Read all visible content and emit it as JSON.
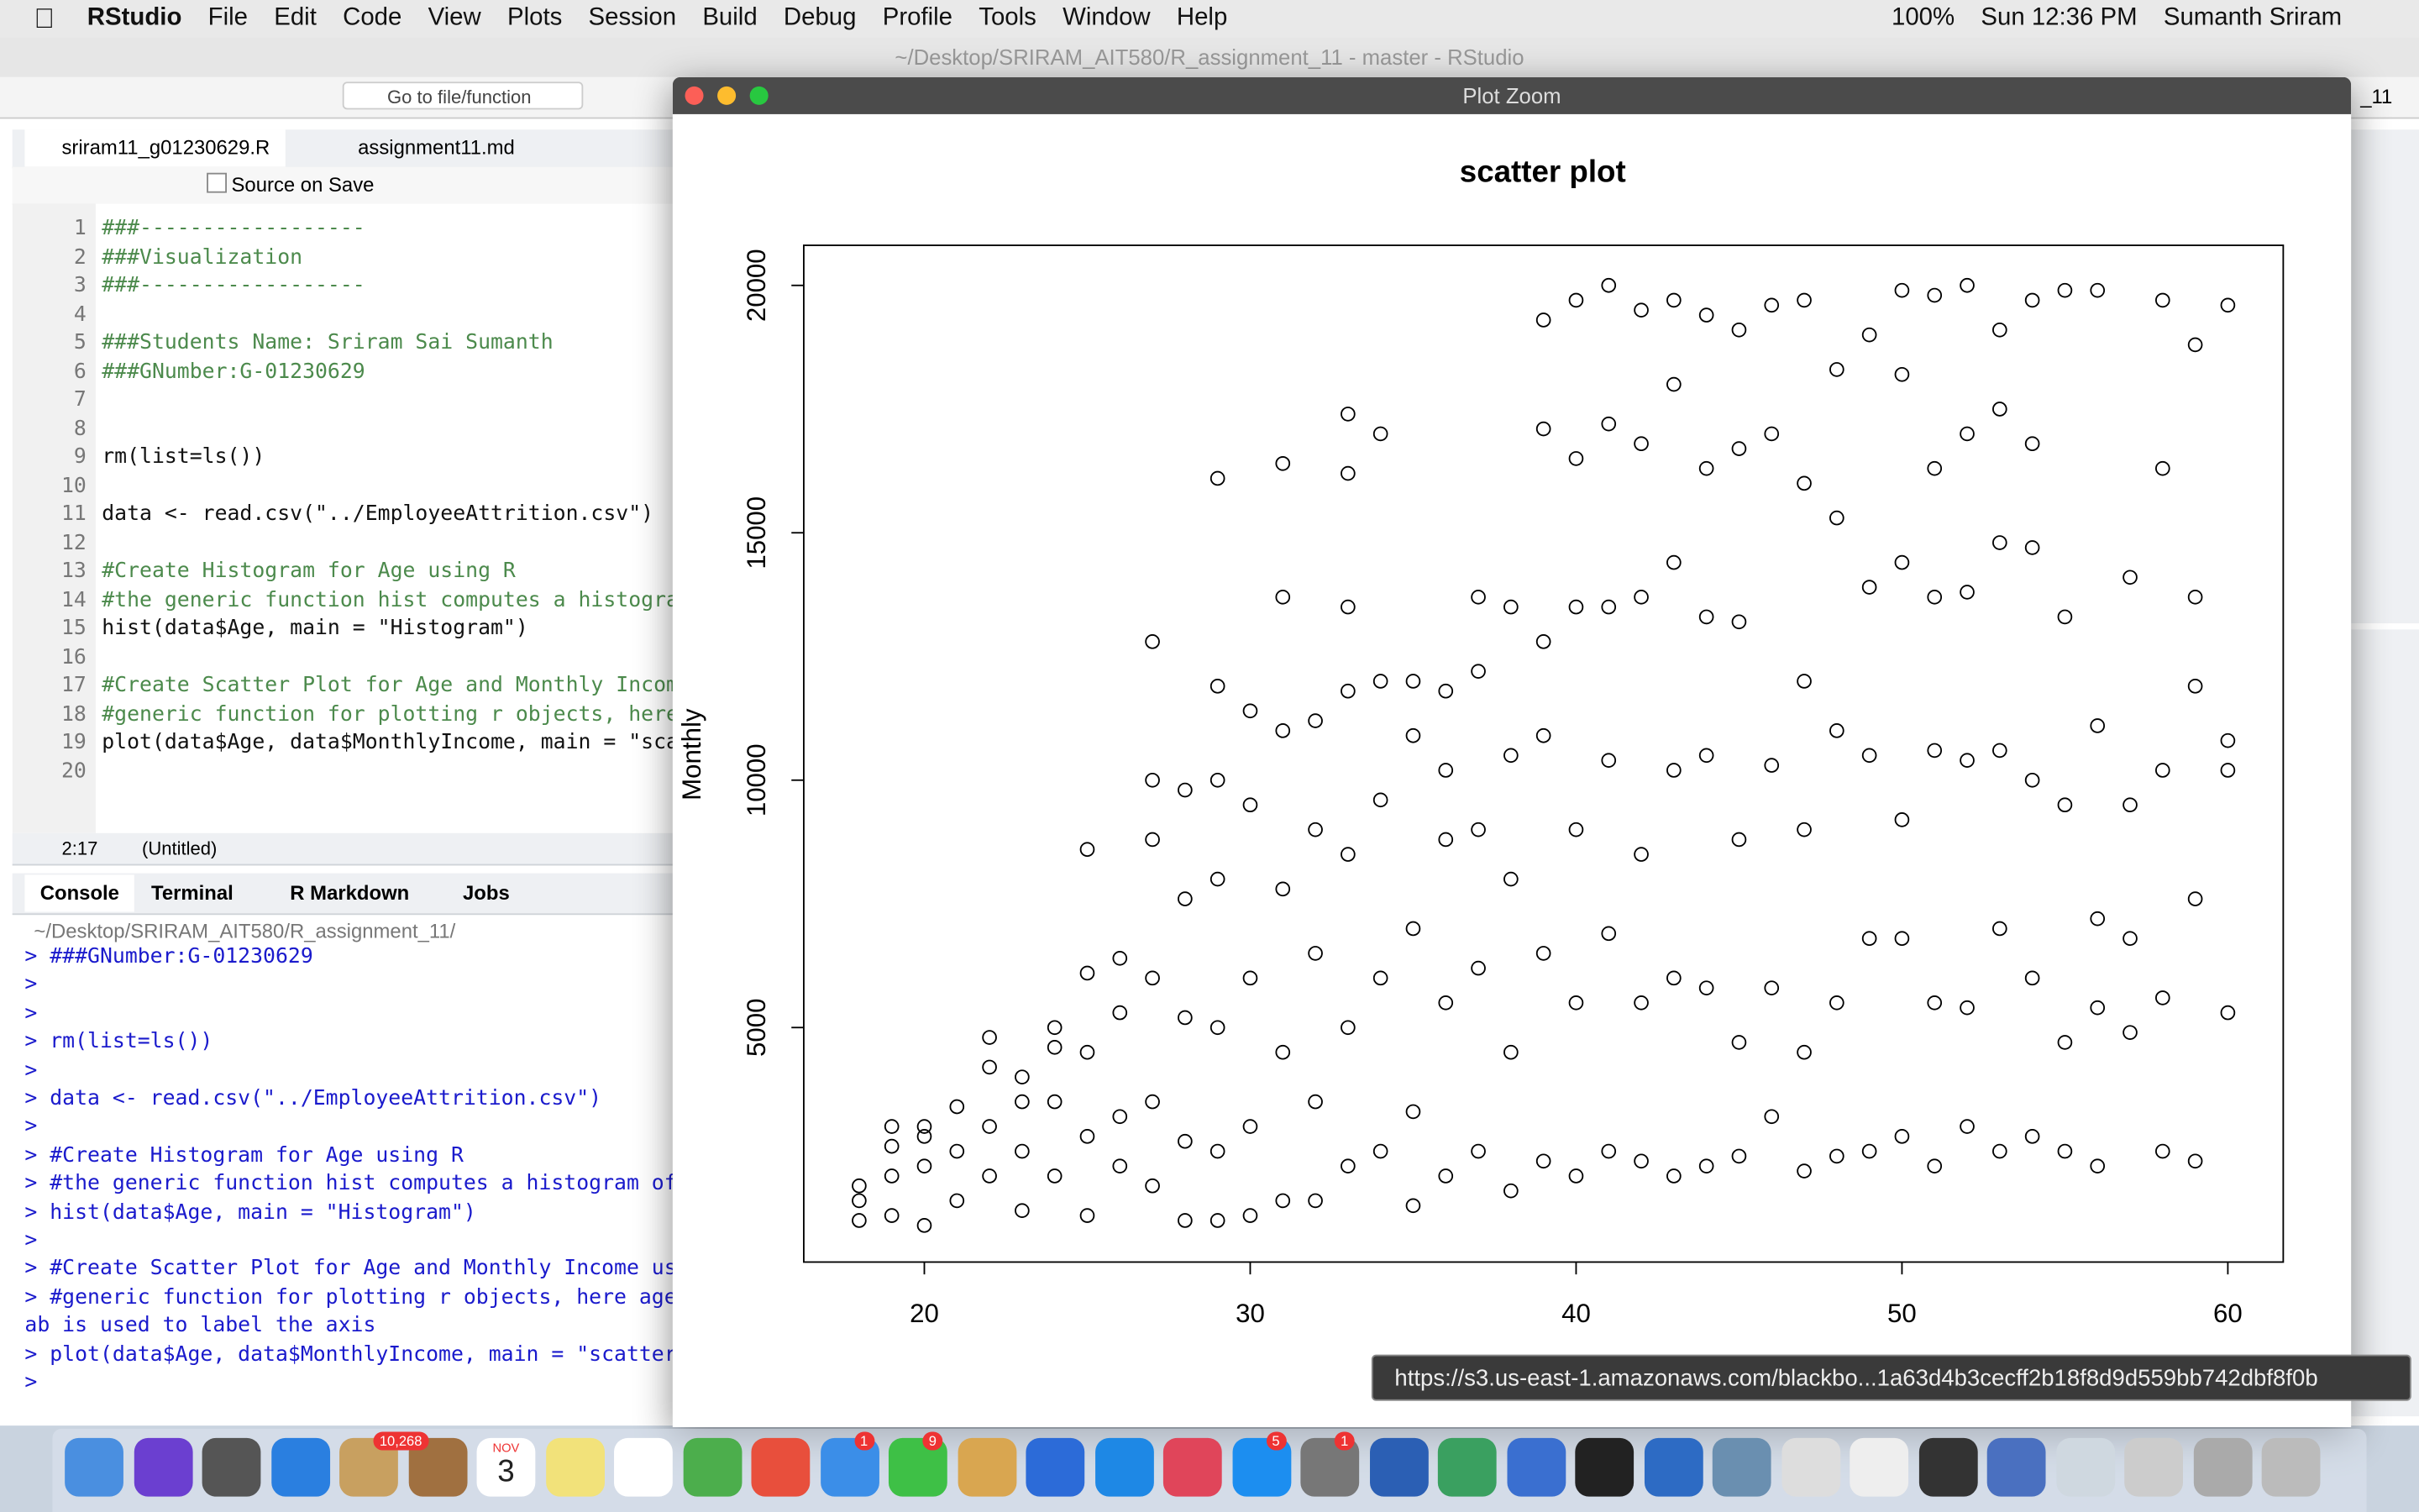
{
  "menubar": {
    "app": "RStudio",
    "menus": [
      "File",
      "Edit",
      "Code",
      "View",
      "Plots",
      "Session",
      "Build",
      "Debug",
      "Profile",
      "Tools",
      "Window",
      "Help"
    ],
    "battery": "100%",
    "clock": "Sun 12:36 PM",
    "user": "Sumanth Sriram"
  },
  "window_title": "~/Desktop/SRIRAM_AIT580/R_assignment_11 - master - RStudio",
  "toolbar": {
    "goto": "Go to file/function",
    "project": "_11"
  },
  "editor": {
    "tabs": [
      "sriram11_g01230629.R",
      "assignment11.md"
    ],
    "source_on_save": "Source on Save",
    "lines": [
      {
        "n": 1,
        "text": "###------------------",
        "kind": "comment"
      },
      {
        "n": 2,
        "text": "###Visualization",
        "kind": "comment"
      },
      {
        "n": 3,
        "text": "###------------------",
        "kind": "comment"
      },
      {
        "n": 4
      },
      {
        "n": 5,
        "text": "###Students Name: Sriram Sai Sumanth",
        "kind": "comment"
      },
      {
        "n": 6,
        "text": "###GNumber:G-01230629",
        "kind": "comment"
      },
      {
        "n": 7
      },
      {
        "n": 8
      },
      {
        "n": 9,
        "text": "rm(list=ls())",
        "kind": "code"
      },
      {
        "n": 10
      },
      {
        "n": 11,
        "text": "data <- read.csv(\"../EmployeeAttrition.csv\")",
        "kind": "code"
      },
      {
        "n": 12
      },
      {
        "n": 13,
        "text": "#Create Histogram for Age using R",
        "kind": "comment"
      },
      {
        "n": 14,
        "text": "#the generic function hist computes a histogram",
        "kind": "comment"
      },
      {
        "n": 15,
        "text": "hist(data$Age, main = \"Histogram\")",
        "kind": "code"
      },
      {
        "n": 16
      },
      {
        "n": 17,
        "text": "#Create Scatter Plot for Age and Monthly Income",
        "kind": "comment"
      },
      {
        "n": 18,
        "text": "#generic function for plotting r objects, here",
        "kind": "comment"
      },
      {
        "n": 19,
        "text": "plot(data$Age, data$MonthlyIncome, main = \"scat",
        "kind": "code"
      },
      {
        "n": 20
      }
    ],
    "status_pos": "2:17",
    "status_scope": "(Untitled)"
  },
  "console": {
    "tabs": [
      "Console",
      "Terminal",
      "R Markdown",
      "Jobs"
    ],
    "path": "~/Desktop/SRIRAM_AIT580/R_assignment_11/",
    "lines": [
      "> ###GNumber:G-01230629",
      ">",
      ">",
      "> rm(list=ls())",
      ">",
      "> data <- read.csv(\"../EmployeeAttrition.csv\")",
      ">",
      "> #Create Histogram for Age using R",
      "> #the generic function hist computes a histogram of t",
      "> hist(data$Age, main = \"Histogram\")",
      ">",
      "> #Create Scatter Plot for Age and Monthly Income usin",
      "> #generic function for plotting r objects, here age t",
      "ab is used to label the axis",
      "> plot(data$Age, data$MonthlyIncome, main = \"scatter p",
      ">"
    ]
  },
  "plot_window": {
    "title": "Plot Zoom",
    "plot": {
      "type": "scatter",
      "title": "scatter plot",
      "ylabel": "Monthly",
      "xlim": [
        16.3,
        61.7
      ],
      "ylim": [
        260,
        20810
      ],
      "xticks": [
        20,
        30,
        40,
        50,
        60
      ],
      "yticks": [
        5000,
        10000,
        15000,
        20000
      ],
      "points": [
        [
          18,
          1100
        ],
        [
          18,
          1500
        ],
        [
          18,
          1800
        ],
        [
          19,
          1200
        ],
        [
          19,
          2000
        ],
        [
          19,
          2600
        ],
        [
          19,
          3000
        ],
        [
          20,
          1000
        ],
        [
          20,
          2200
        ],
        [
          20,
          2800
        ],
        [
          20,
          3000
        ],
        [
          21,
          1500
        ],
        [
          21,
          2500
        ],
        [
          21,
          3400
        ],
        [
          22,
          2000
        ],
        [
          22,
          3000
        ],
        [
          22,
          4200
        ],
        [
          22,
          4800
        ],
        [
          23,
          1300
        ],
        [
          23,
          2500
        ],
        [
          23,
          3500
        ],
        [
          23,
          4000
        ],
        [
          24,
          2000
        ],
        [
          24,
          3500
        ],
        [
          24,
          4600
        ],
        [
          24,
          5000
        ],
        [
          25,
          1200
        ],
        [
          25,
          2800
        ],
        [
          25,
          4500
        ],
        [
          25,
          6100
        ],
        [
          25,
          8600
        ],
        [
          26,
          2200
        ],
        [
          26,
          3200
        ],
        [
          26,
          5300
        ],
        [
          26,
          6400
        ],
        [
          27,
          1800
        ],
        [
          27,
          3500
        ],
        [
          27,
          6000
        ],
        [
          27,
          8800
        ],
        [
          27,
          10000
        ],
        [
          27,
          12800
        ],
        [
          28,
          1100
        ],
        [
          28,
          2700
        ],
        [
          28,
          5200
        ],
        [
          28,
          7600
        ],
        [
          28,
          9800
        ],
        [
          29,
          1100
        ],
        [
          29,
          2500
        ],
        [
          29,
          5000
        ],
        [
          29,
          8000
        ],
        [
          29,
          10000
        ],
        [
          29,
          11900
        ],
        [
          29,
          16100
        ],
        [
          30,
          1200
        ],
        [
          30,
          3000
        ],
        [
          30,
          6000
        ],
        [
          30,
          9500
        ],
        [
          30,
          11400
        ],
        [
          31,
          1500
        ],
        [
          31,
          4500
        ],
        [
          31,
          7800
        ],
        [
          31,
          11000
        ],
        [
          31,
          13700
        ],
        [
          31,
          16400
        ],
        [
          32,
          1500
        ],
        [
          32,
          3500
        ],
        [
          32,
          6500
        ],
        [
          32,
          9000
        ],
        [
          32,
          11200
        ],
        [
          33,
          2200
        ],
        [
          33,
          5000
        ],
        [
          33,
          8500
        ],
        [
          33,
          11800
        ],
        [
          33,
          13500
        ],
        [
          33,
          16200
        ],
        [
          33,
          17400
        ],
        [
          34,
          2500
        ],
        [
          34,
          6000
        ],
        [
          34,
          9600
        ],
        [
          34,
          12000
        ],
        [
          34,
          17000
        ],
        [
          35,
          1400
        ],
        [
          35,
          3300
        ],
        [
          35,
          7000
        ],
        [
          35,
          10900
        ],
        [
          35,
          12000
        ],
        [
          36,
          2000
        ],
        [
          36,
          5500
        ],
        [
          36,
          8800
        ],
        [
          36,
          10200
        ],
        [
          36,
          11800
        ],
        [
          37,
          2500
        ],
        [
          37,
          6200
        ],
        [
          37,
          9000
        ],
        [
          37,
          12200
        ],
        [
          37,
          13700
        ],
        [
          38,
          1700
        ],
        [
          38,
          4500
        ],
        [
          38,
          8000
        ],
        [
          38,
          10500
        ],
        [
          38,
          13500
        ],
        [
          39,
          2300
        ],
        [
          39,
          6500
        ],
        [
          39,
          10900
        ],
        [
          39,
          12800
        ],
        [
          39,
          17100
        ],
        [
          39,
          19300
        ],
        [
          40,
          2000
        ],
        [
          40,
          5500
        ],
        [
          40,
          9000
        ],
        [
          40,
          13500
        ],
        [
          40,
          16500
        ],
        [
          40,
          19700
        ],
        [
          41,
          2500
        ],
        [
          41,
          6900
        ],
        [
          41,
          10400
        ],
        [
          41,
          13500
        ],
        [
          41,
          17200
        ],
        [
          41,
          20000
        ],
        [
          42,
          2300
        ],
        [
          42,
          5500
        ],
        [
          42,
          8500
        ],
        [
          42,
          13700
        ],
        [
          42,
          16800
        ],
        [
          42,
          19500
        ],
        [
          43,
          2000
        ],
        [
          43,
          6000
        ],
        [
          43,
          10200
        ],
        [
          43,
          14400
        ],
        [
          43,
          18000
        ],
        [
          43,
          19700
        ],
        [
          44,
          2200
        ],
        [
          44,
          5800
        ],
        [
          44,
          10500
        ],
        [
          44,
          13300
        ],
        [
          44,
          16300
        ],
        [
          44,
          19400
        ],
        [
          45,
          2400
        ],
        [
          45,
          4700
        ],
        [
          45,
          8800
        ],
        [
          45,
          13200
        ],
        [
          45,
          16700
        ],
        [
          45,
          19100
        ],
        [
          46,
          3200
        ],
        [
          46,
          5800
        ],
        [
          46,
          10300
        ],
        [
          46,
          17000
        ],
        [
          46,
          19600
        ],
        [
          47,
          2100
        ],
        [
          47,
          4500
        ],
        [
          47,
          9000
        ],
        [
          47,
          12000
        ],
        [
          47,
          16000
        ],
        [
          47,
          19700
        ],
        [
          48,
          2400
        ],
        [
          48,
          5500
        ],
        [
          48,
          11000
        ],
        [
          48,
          15300
        ],
        [
          48,
          18300
        ],
        [
          49,
          2500
        ],
        [
          49,
          6800
        ],
        [
          49,
          10500
        ],
        [
          49,
          13900
        ],
        [
          49,
          19000
        ],
        [
          50,
          2800
        ],
        [
          50,
          6800
        ],
        [
          50,
          9200
        ],
        [
          50,
          14400
        ],
        [
          50,
          18200
        ],
        [
          50,
          19900
        ],
        [
          51,
          2200
        ],
        [
          51,
          5500
        ],
        [
          51,
          10600
        ],
        [
          51,
          13700
        ],
        [
          51,
          16300
        ],
        [
          51,
          19800
        ],
        [
          52,
          3000
        ],
        [
          52,
          5400
        ],
        [
          52,
          10400
        ],
        [
          52,
          13800
        ],
        [
          52,
          17000
        ],
        [
          52,
          20000
        ],
        [
          53,
          2500
        ],
        [
          53,
          7000
        ],
        [
          53,
          10600
        ],
        [
          53,
          14800
        ],
        [
          53,
          17500
        ],
        [
          53,
          19100
        ],
        [
          54,
          2800
        ],
        [
          54,
          6000
        ],
        [
          54,
          10000
        ],
        [
          54,
          14700
        ],
        [
          54,
          16800
        ],
        [
          54,
          19700
        ],
        [
          55,
          2500
        ],
        [
          55,
          4700
        ],
        [
          55,
          9500
        ],
        [
          55,
          13300
        ],
        [
          55,
          19900
        ],
        [
          56,
          2200
        ],
        [
          56,
          5400
        ],
        [
          56,
          7200
        ],
        [
          56,
          11100
        ],
        [
          56,
          19900
        ],
        [
          57,
          4900
        ],
        [
          57,
          6800
        ],
        [
          57,
          9500
        ],
        [
          57,
          14100
        ],
        [
          58,
          2500
        ],
        [
          58,
          5600
        ],
        [
          58,
          10200
        ],
        [
          58,
          16300
        ],
        [
          58,
          19700
        ],
        [
          59,
          2300
        ],
        [
          59,
          7600
        ],
        [
          59,
          11900
        ],
        [
          59,
          13700
        ],
        [
          59,
          18800
        ],
        [
          60,
          5300
        ],
        [
          60,
          10200
        ],
        [
          60,
          10800
        ],
        [
          60,
          19600
        ]
      ]
    }
  },
  "tooltip": "https://s3.us-east-1.amazonaws.com/blackbo...1a63d4b3cecff2b18f8d9d559bb742dbf8f0b",
  "dock": {
    "badges": [
      "10,268",
      "1",
      "9",
      "5",
      "1"
    ],
    "calendar_month": "NOV",
    "calendar_day": "3"
  }
}
